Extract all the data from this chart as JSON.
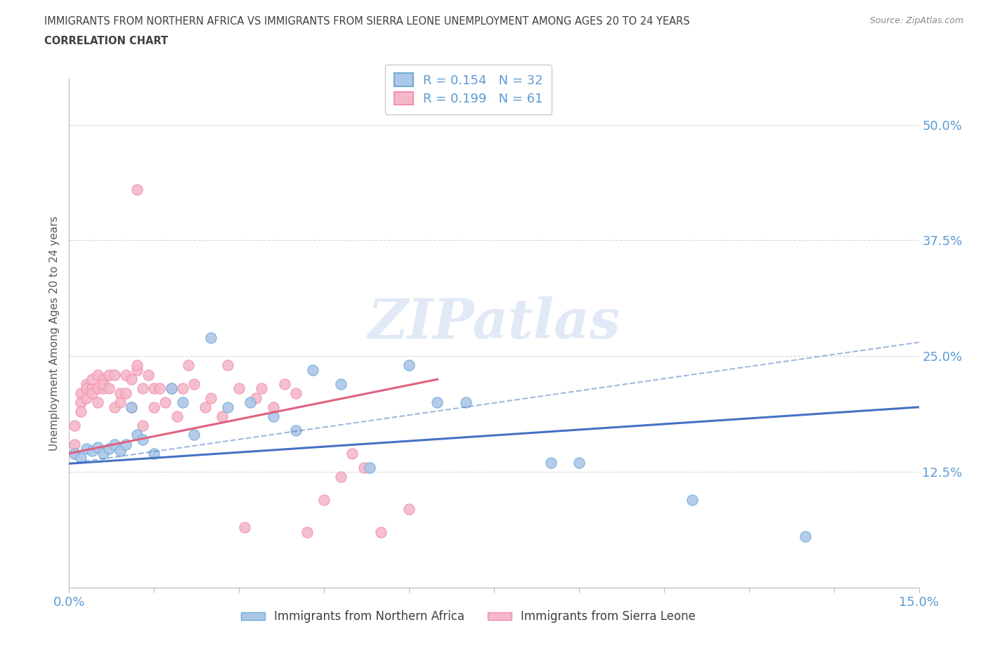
{
  "title_line1": "IMMIGRANTS FROM NORTHERN AFRICA VS IMMIGRANTS FROM SIERRA LEONE UNEMPLOYMENT AMONG AGES 20 TO 24 YEARS",
  "title_line2": "CORRELATION CHART",
  "source_text": "Source: ZipAtlas.com",
  "ylabel": "Unemployment Among Ages 20 to 24 years",
  "xlim": [
    0.0,
    0.15
  ],
  "ylim": [
    0.0,
    0.55
  ],
  "ytick_positions": [
    0.0,
    0.125,
    0.25,
    0.375,
    0.5
  ],
  "ytick_labels": [
    "",
    "12.5%",
    "25.0%",
    "37.5%",
    "50.0%"
  ],
  "xtick_positions": [
    0.0,
    0.015,
    0.03,
    0.045,
    0.06,
    0.075,
    0.09,
    0.105,
    0.12,
    0.135,
    0.15
  ],
  "legend_entries": [
    {
      "label": "Immigrants from Northern Africa",
      "color": "#aec6e8",
      "border_color": "#6baed6",
      "R": 0.154,
      "N": 32
    },
    {
      "label": "Immigrants from Sierra Leone",
      "color": "#f4b8c8",
      "border_color": "#f48fb1",
      "R": 0.199,
      "N": 61
    }
  ],
  "blue_line_color": "#4472c4",
  "pink_line_color": "#e06080",
  "blue_scatter_fill": "#aec6e8",
  "blue_scatter_edge": "#6baed6",
  "pink_scatter_fill": "#f4b8c8",
  "pink_scatter_edge": "#f48fb1",
  "blue_points_x": [
    0.001,
    0.002,
    0.003,
    0.004,
    0.005,
    0.006,
    0.007,
    0.008,
    0.009,
    0.01,
    0.011,
    0.012,
    0.013,
    0.015,
    0.018,
    0.02,
    0.022,
    0.025,
    0.028,
    0.032,
    0.036,
    0.04,
    0.043,
    0.048,
    0.053,
    0.06,
    0.065,
    0.07,
    0.085,
    0.09,
    0.11,
    0.13
  ],
  "blue_points_y": [
    0.145,
    0.14,
    0.15,
    0.148,
    0.152,
    0.145,
    0.15,
    0.155,
    0.148,
    0.155,
    0.195,
    0.165,
    0.16,
    0.145,
    0.215,
    0.2,
    0.165,
    0.27,
    0.195,
    0.2,
    0.185,
    0.17,
    0.235,
    0.22,
    0.13,
    0.24,
    0.2,
    0.2,
    0.135,
    0.135,
    0.095,
    0.055
  ],
  "pink_points_x": [
    0.001,
    0.001,
    0.001,
    0.002,
    0.002,
    0.002,
    0.003,
    0.003,
    0.003,
    0.004,
    0.004,
    0.004,
    0.005,
    0.005,
    0.005,
    0.006,
    0.006,
    0.006,
    0.007,
    0.007,
    0.008,
    0.008,
    0.009,
    0.009,
    0.01,
    0.01,
    0.011,
    0.011,
    0.012,
    0.012,
    0.013,
    0.013,
    0.014,
    0.015,
    0.015,
    0.016,
    0.017,
    0.018,
    0.019,
    0.02,
    0.021,
    0.022,
    0.024,
    0.025,
    0.027,
    0.028,
    0.03,
    0.031,
    0.033,
    0.034,
    0.036,
    0.038,
    0.04,
    0.042,
    0.045,
    0.048,
    0.05,
    0.052,
    0.055,
    0.06,
    0.012
  ],
  "pink_points_y": [
    0.145,
    0.155,
    0.175,
    0.2,
    0.19,
    0.21,
    0.22,
    0.205,
    0.215,
    0.215,
    0.225,
    0.21,
    0.23,
    0.215,
    0.2,
    0.225,
    0.215,
    0.22,
    0.23,
    0.215,
    0.195,
    0.23,
    0.21,
    0.2,
    0.23,
    0.21,
    0.225,
    0.195,
    0.235,
    0.24,
    0.175,
    0.215,
    0.23,
    0.195,
    0.215,
    0.215,
    0.2,
    0.215,
    0.185,
    0.215,
    0.24,
    0.22,
    0.195,
    0.205,
    0.185,
    0.24,
    0.215,
    0.065,
    0.205,
    0.215,
    0.195,
    0.22,
    0.21,
    0.06,
    0.095,
    0.12,
    0.145,
    0.13,
    0.06,
    0.085,
    0.43
  ],
  "blue_line": {
    "x0": 0.0,
    "y0": 0.134,
    "x1": 0.15,
    "y1": 0.195
  },
  "blue_dashed_line": {
    "x0": 0.0,
    "y0": 0.134,
    "x1": 0.15,
    "y1": 0.265
  },
  "pink_line": {
    "x0": 0.0,
    "y0": 0.145,
    "x1": 0.065,
    "y1": 0.225
  },
  "watermark": "ZIPatlas",
  "background_color": "#ffffff",
  "grid_color": "#d8d8d8",
  "title_color": "#404040",
  "axis_color": "#bbbbbb",
  "tick_label_color": "#5b9bd5",
  "ylabel_color": "#595959",
  "source_color": "#888888"
}
